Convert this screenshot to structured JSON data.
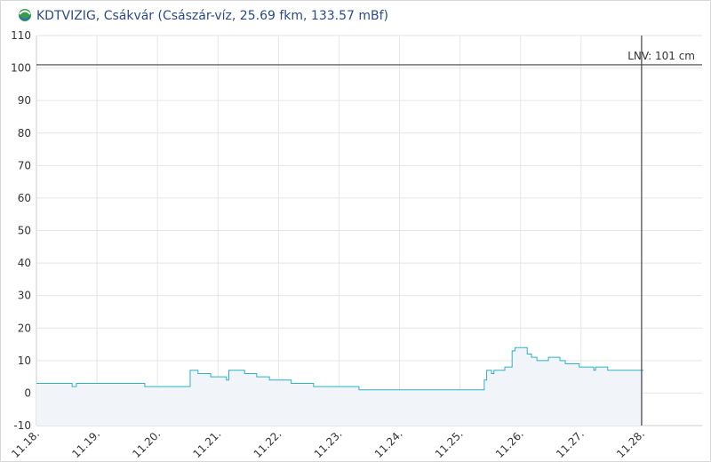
{
  "chart_data": {
    "type": "step-area",
    "title": "KDTVIZIG, Csákvár (Császár-víz, 25.69 fkm, 133.57 mBf)",
    "x": [
      18.0,
      18.59,
      18.66,
      19.79,
      20.54,
      20.67,
      20.88,
      21.14,
      21.18,
      21.44,
      21.64,
      21.85,
      22.21,
      22.58,
      23.33,
      25.4,
      25.44,
      25.52,
      25.56,
      25.74,
      25.86,
      25.91,
      26.11,
      26.18,
      26.27,
      26.46,
      26.65,
      26.74,
      26.97,
      27.21,
      27.24,
      27.44,
      28.03
    ],
    "values": [
      3,
      2,
      3,
      2,
      7,
      6,
      5,
      4,
      7,
      6,
      5,
      4,
      3,
      2,
      1,
      4,
      7,
      6,
      7,
      8,
      13,
      14,
      12,
      11,
      10,
      11,
      10,
      9,
      8,
      7,
      8,
      7,
      7
    ],
    "color": "#2bb3c6",
    "fill_color": "#f1f4f8",
    "xlim": [
      18,
      29
    ],
    "xticks": [
      {
        "value": 18,
        "label": "11.18."
      },
      {
        "value": 19,
        "label": "11.19."
      },
      {
        "value": 20,
        "label": "11.20."
      },
      {
        "value": 21,
        "label": "11.21."
      },
      {
        "value": 22,
        "label": "11.22."
      },
      {
        "value": 23,
        "label": "11.23."
      },
      {
        "value": 24,
        "label": "11.24."
      },
      {
        "value": 25,
        "label": "11.25."
      },
      {
        "value": 26,
        "label": "11.26."
      },
      {
        "value": 27,
        "label": "11.27."
      },
      {
        "value": 28,
        "label": "11.28."
      }
    ],
    "ylim": [
      -10,
      110
    ],
    "yticks": [
      -10,
      0,
      10,
      20,
      30,
      40,
      50,
      60,
      70,
      80,
      90,
      100,
      110
    ],
    "grid": true,
    "reference_line": {
      "value": 101,
      "label": "LNV: 101 cm"
    },
    "marker_x": 28
  }
}
